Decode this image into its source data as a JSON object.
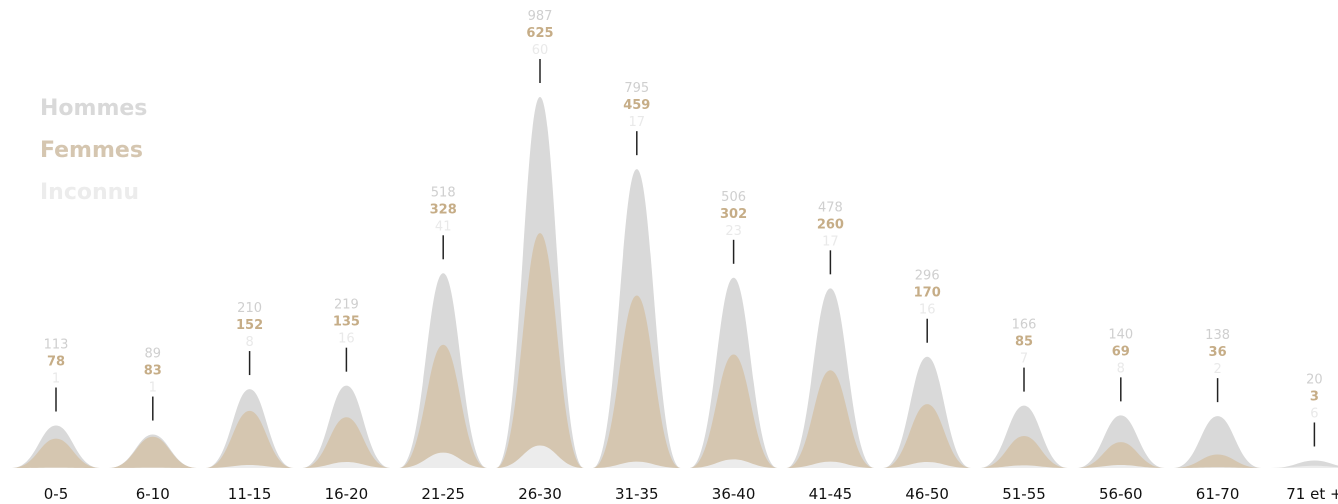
{
  "colors": {
    "hommes": "#d9d9d9",
    "femmes": "#d5c6b0",
    "inconnu": "#ececec",
    "hommes_text": "#cfcfcf",
    "femmes_text": "#c6ad87",
    "inconnu_text": "#e9e9e9",
    "stem": "#222222",
    "axis_text": "#111111"
  },
  "chart_data": {
    "type": "area",
    "categories": [
      "0-5",
      "6-10",
      "11-15",
      "16-20",
      "21-25",
      "26-30",
      "31-35",
      "36-40",
      "41-45",
      "46-50",
      "51-55",
      "56-60",
      "61-70",
      "71 et +"
    ],
    "series": [
      {
        "name": "Hommes",
        "values": [
          113,
          89,
          210,
          219,
          518,
          987,
          795,
          506,
          478,
          296,
          166,
          140,
          138,
          20
        ]
      },
      {
        "name": "Femmes",
        "values": [
          78,
          83,
          152,
          135,
          328,
          625,
          459,
          302,
          260,
          170,
          85,
          69,
          36,
          3
        ]
      },
      {
        "name": "Inconnu",
        "values": [
          1,
          1,
          8,
          16,
          41,
          60,
          17,
          23,
          17,
          16,
          7,
          8,
          2,
          6
        ]
      }
    ],
    "ylim": [
      0,
      987
    ],
    "legend": "top-left",
    "grid": false
  }
}
